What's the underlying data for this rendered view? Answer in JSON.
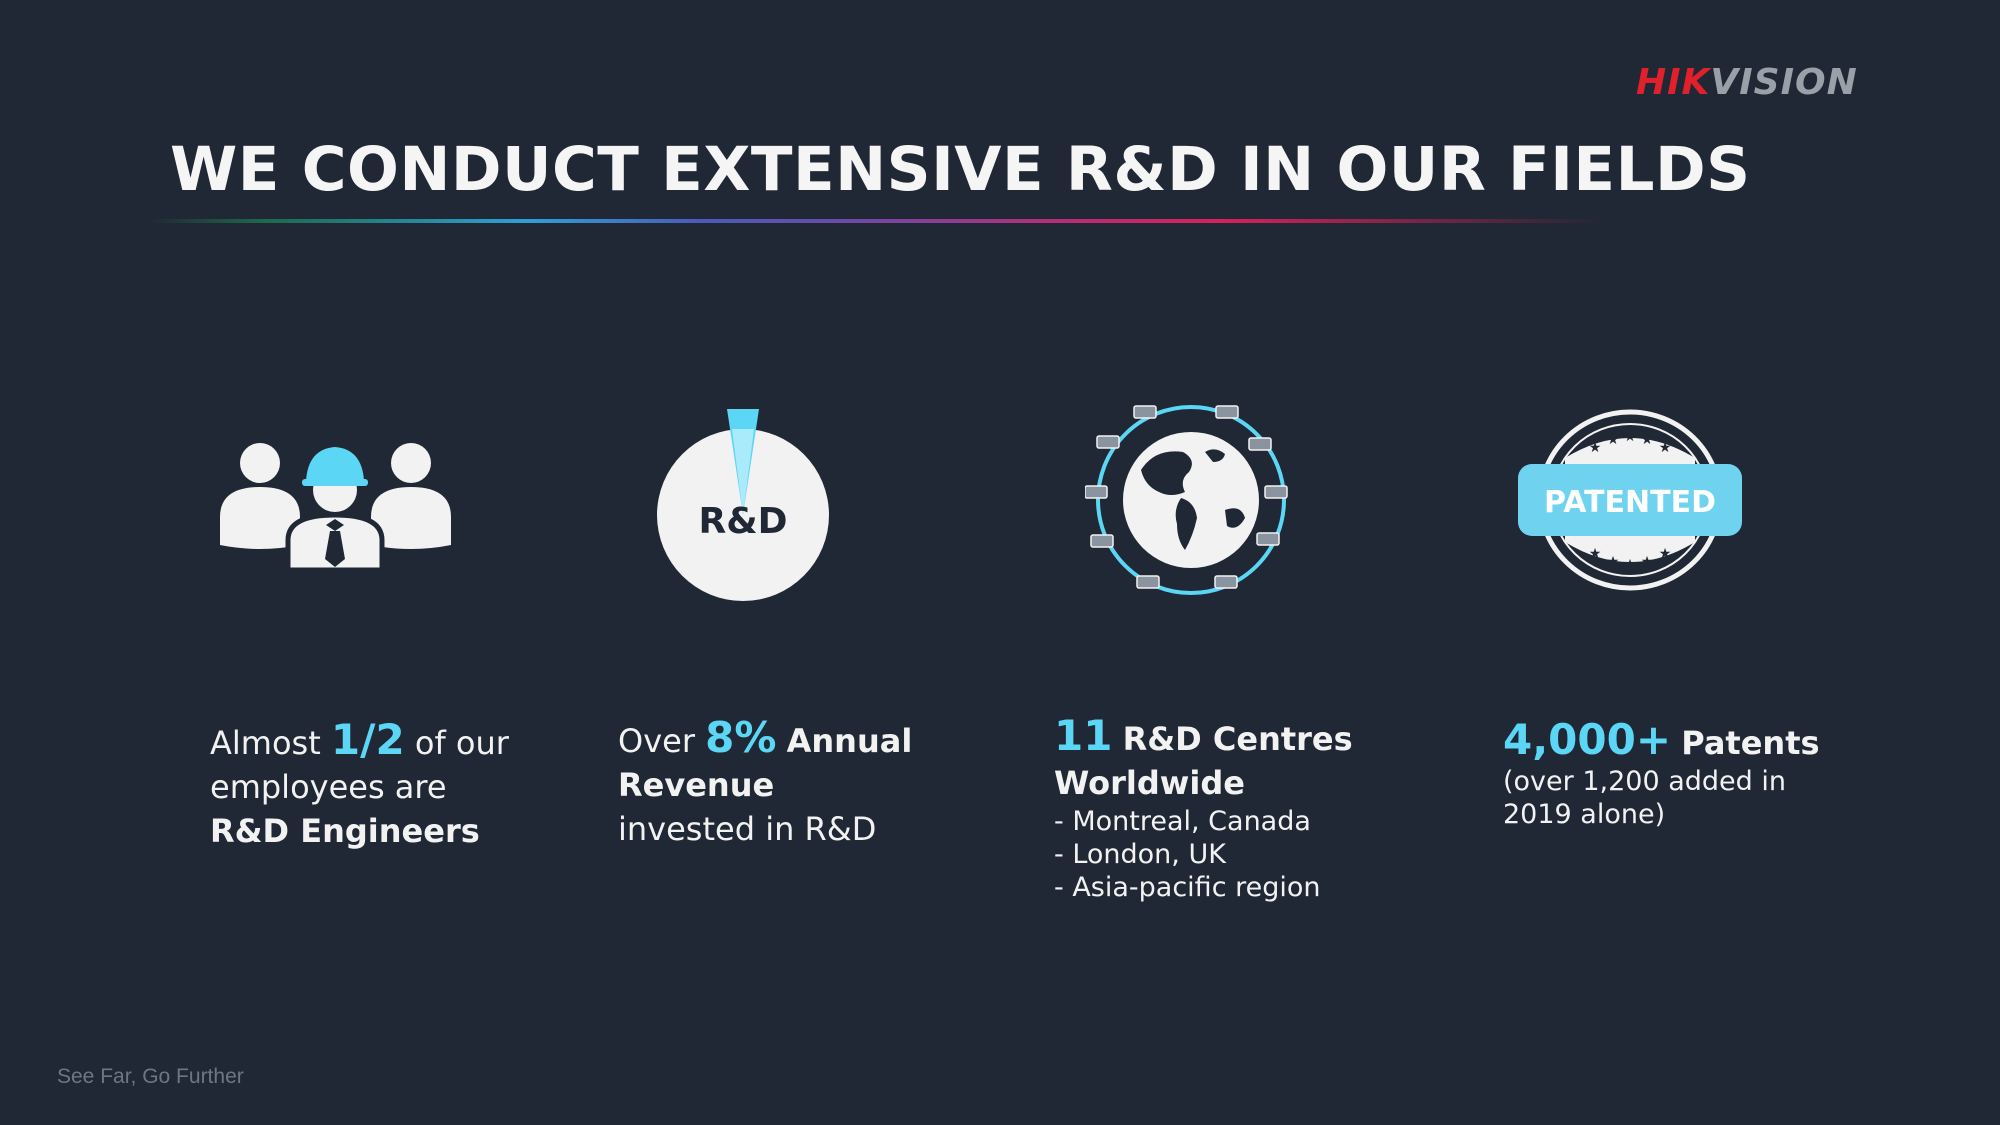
{
  "logo": {
    "part1": "HIK",
    "part2": "VISION"
  },
  "title": "WE CONDUCT EXTENSIVE R&D IN OUR FIELDS",
  "icons": {
    "pie_label": "R&D",
    "badge_label": "PATENTED"
  },
  "stats": [
    {
      "pre": "Almost ",
      "highlight": "1/2",
      "post": " of our",
      "line2": "employees are",
      "bold": "R&D Engineers"
    },
    {
      "pre": "Over ",
      "highlight": "8%",
      "bold1": "Annual",
      "bold2": "Revenue",
      "line3": "invested in R&D"
    },
    {
      "highlight": "11",
      "bold1": "R&D Centres",
      "bold2": "Worldwide",
      "items": [
        "- Montreal, Canada",
        "- London, UK",
        "- Asia-pacific region"
      ]
    },
    {
      "highlight": "4,000+",
      "bold1": "Patents",
      "sub1": "(over 1,200 added in",
      "sub2": "2019 alone)"
    }
  ],
  "tagline": "See Far, Go Further",
  "colors": {
    "background": "#212835",
    "accent": "#5cd6f5",
    "brand_red": "#e0202a"
  }
}
